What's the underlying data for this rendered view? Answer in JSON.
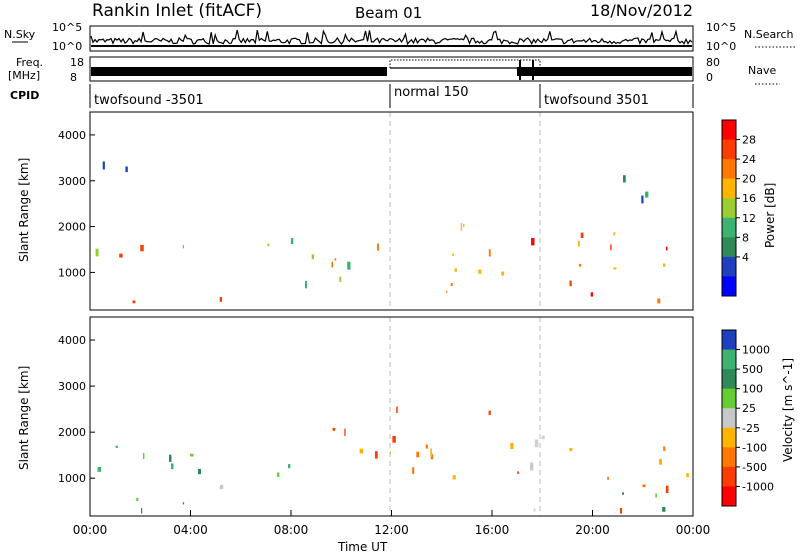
{
  "header": {
    "title": "Rankin Inlet (fitACF)",
    "beam": "Beam 01",
    "date": "18/Nov/2012"
  },
  "panels": {
    "nsky_label": "N.Sky",
    "nsky_ticks": [
      "10^5",
      "10^0"
    ],
    "nsearch_label": "N.Search",
    "nsearch_ticks": [
      "10^5",
      "10^0"
    ],
    "freq_label_1": "Freq.",
    "freq_label_2": "[MHz]",
    "freq_ticks": [
      "18",
      "8"
    ],
    "nave_label": "Nave",
    "nave_ticks": [
      "80",
      "0"
    ],
    "cpid_label": "CPID",
    "cpid_segments": [
      {
        "label": "twofsound -3501",
        "start": 0.0
      },
      {
        "label": "normal 150",
        "start": 12.0
      },
      {
        "label": "twofsound 3501",
        "start": 18.0
      }
    ]
  },
  "power_panel": {
    "ylabel": "Slant Range [km]",
    "yticks": [
      "4000",
      "3000",
      "2000",
      "1000"
    ],
    "colorbar_label": "Power [dB]",
    "colorbar_ticks": [
      "28",
      "24",
      "20",
      "16",
      "12",
      "8",
      "4"
    ],
    "colorbar_colors": [
      "#ff0000",
      "#ff3c00",
      "#ff7800",
      "#ffb400",
      "#9acd32",
      "#3cb371",
      "#2e8b57",
      "#1f3fbf",
      "#0000ff"
    ]
  },
  "velocity_panel": {
    "ylabel": "Slant Range [km]",
    "yticks": [
      "4000",
      "3000",
      "2000",
      "1000"
    ],
    "colorbar_label": "Velocity [m s^-1]",
    "colorbar_ticks": [
      "1000",
      "500",
      "100",
      "25",
      "-25",
      "-100",
      "-500",
      "-1000"
    ],
    "colorbar_colors": [
      "#1f3fbf",
      "#3cb371",
      "#2e8b57",
      "#66cc33",
      "#c8c8c8",
      "#ffb400",
      "#ff7800",
      "#ff3c00",
      "#ff0000"
    ]
  },
  "xaxis": {
    "label": "Time UT",
    "ticks": [
      "00:00",
      "04:00",
      "08:00",
      "12:00",
      "16:00",
      "20:00",
      "00:00"
    ]
  },
  "chart_data": {
    "type": "heatmap",
    "x_range_hours": [
      0,
      24
    ],
    "y_range_km": [
      180,
      4500
    ],
    "power_bands": [
      {
        "t0": 0,
        "t1": 6,
        "r0": 300,
        "r1": 700,
        "level": "high"
      },
      {
        "t0": 0,
        "t1": 12,
        "r0": 800,
        "r1": 1800,
        "level": "mid"
      },
      {
        "t0": 12,
        "t1": 17,
        "r0": 600,
        "r1": 2200,
        "level": "high"
      },
      {
        "t0": 17.5,
        "t1": 24,
        "r0": 400,
        "r1": 2000,
        "level": "high"
      },
      {
        "t0": 0,
        "t1": 3,
        "r0": 3200,
        "r1": 3800,
        "level": "low"
      },
      {
        "t0": 21,
        "t1": 24,
        "r0": 2600,
        "r1": 3500,
        "level": "low"
      }
    ],
    "velocity_bands": [
      {
        "t0": 0,
        "t1": 8,
        "r0": 300,
        "r1": 1800,
        "level": "green"
      },
      {
        "t0": 1,
        "t1": 7,
        "r0": 700,
        "r1": 1000,
        "level": "grey"
      },
      {
        "t0": 8,
        "t1": 17,
        "r0": 1000,
        "r1": 2600,
        "level": "orange"
      },
      {
        "t0": 17,
        "t1": 18.5,
        "r0": 300,
        "r1": 2500,
        "level": "grey"
      },
      {
        "t0": 18.5,
        "t1": 24,
        "r0": 300,
        "r1": 1700,
        "level": "orange"
      },
      {
        "t0": 21,
        "t1": 24,
        "r0": 300,
        "r1": 1200,
        "level": "green"
      }
    ]
  }
}
